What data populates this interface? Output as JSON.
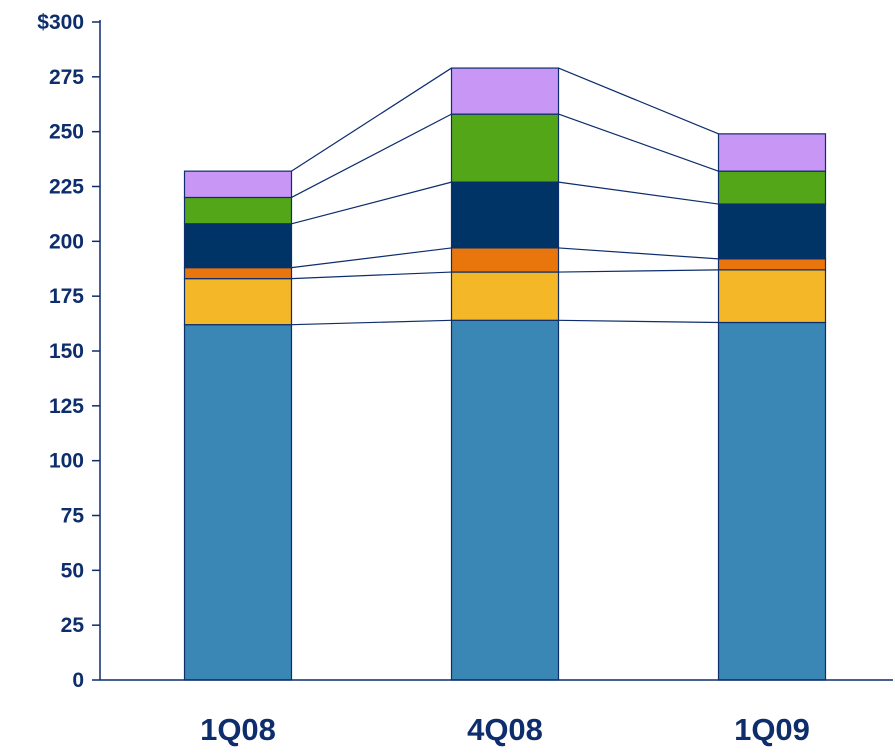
{
  "chart_data": {
    "type": "bar",
    "stacked": true,
    "categories": [
      "1Q08",
      "4Q08",
      "1Q09"
    ],
    "series": [
      {
        "values": [
          162,
          164,
          163
        ],
        "color": "#3a86b4"
      },
      {
        "values": [
          21,
          22,
          24
        ],
        "color": "#f4b727"
      },
      {
        "values": [
          5,
          11,
          5
        ],
        "color": "#e8760d"
      },
      {
        "values": [
          20,
          30,
          25
        ],
        "color": "#003366"
      },
      {
        "values": [
          12,
          31,
          15
        ],
        "color": "#53a617"
      },
      {
        "values": [
          12,
          21,
          17
        ],
        "color": "#c897f6"
      }
    ],
    "ylim": [
      0,
      300
    ],
    "yticks": [
      0,
      25,
      50,
      75,
      100,
      125,
      150,
      175,
      200,
      225,
      250,
      275,
      300
    ],
    "ytick_labels": [
      "0",
      "25",
      "50",
      "75",
      "100",
      "125",
      "150",
      "175",
      "200",
      "225",
      "250",
      "275",
      "$300"
    ],
    "connector_lines": true,
    "grid": false,
    "legend": "none",
    "colors": {
      "axis": "#0d2d6c",
      "text": "#0d2d6c"
    }
  }
}
